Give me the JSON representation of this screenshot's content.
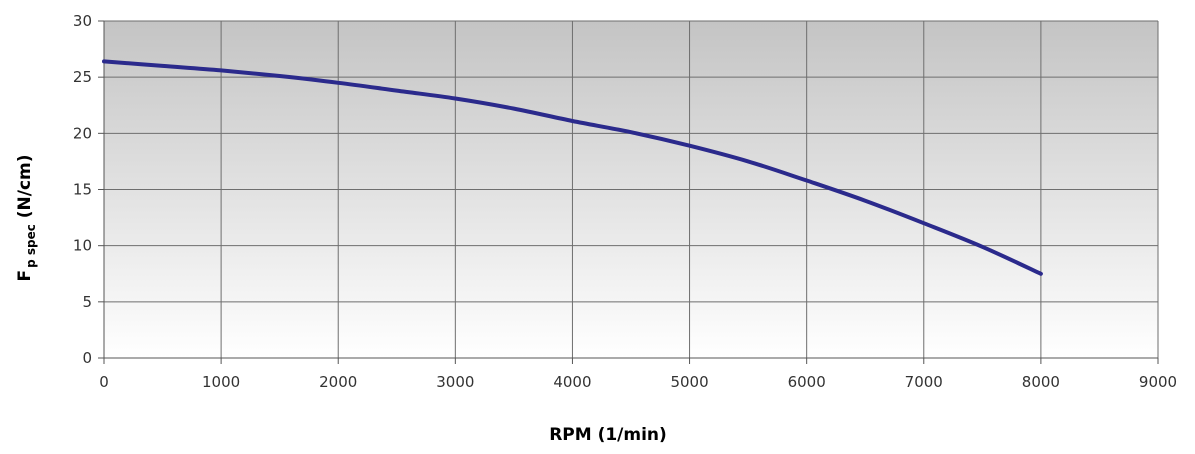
{
  "chart_data": {
    "type": "line",
    "title": "",
    "xlabel": "RPM (1/min)",
    "ylabel": {
      "main": "F",
      "subscript": "p spec",
      "unit": " (N/cm)"
    },
    "xlim": [
      0,
      9000
    ],
    "ylim": [
      0,
      30
    ],
    "x_ticks": [
      0,
      1000,
      2000,
      3000,
      4000,
      5000,
      6000,
      7000,
      8000,
      9000
    ],
    "y_ticks": [
      0,
      5,
      10,
      15,
      20,
      25,
      30
    ],
    "grid": true,
    "legend": "none",
    "series": [
      {
        "color": "#2b2a8c",
        "x": [
          0,
          500,
          1000,
          1500,
          2000,
          2500,
          3000,
          3500,
          4000,
          4500,
          5000,
          5500,
          6000,
          6500,
          7000,
          7500,
          8000
        ],
        "y": [
          26.4,
          26.0,
          25.6,
          25.1,
          24.5,
          23.8,
          23.1,
          22.2,
          21.1,
          20.1,
          18.9,
          17.5,
          15.8,
          14.0,
          12.0,
          9.9,
          7.5
        ]
      }
    ],
    "colors": {
      "plot_top": "#c4c4c4",
      "plot_bottom": "#ffffff",
      "grid": "#6e6e6e",
      "line": "#2b2a8c"
    }
  }
}
